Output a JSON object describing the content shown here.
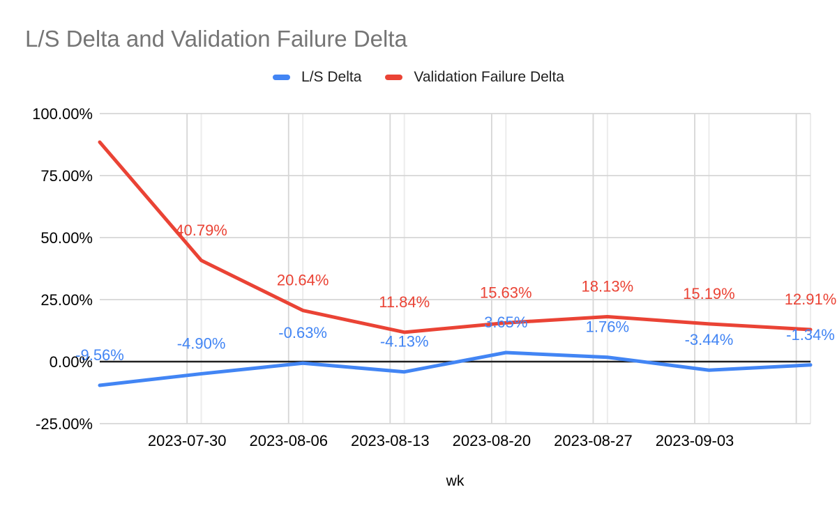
{
  "title": "L/S Delta and Validation Failure Delta",
  "legend": [
    {
      "label": "L/S Delta",
      "color": "#4285f4"
    },
    {
      "label": "Validation Failure Delta",
      "color": "#ea4335"
    }
  ],
  "chart_data": {
    "type": "line",
    "title": "L/S Delta and Validation Failure Delta",
    "xlabel": "wk",
    "ylabel": "",
    "legend_position": "top",
    "grid": true,
    "ylim": [
      -25,
      100
    ],
    "y_ticks_values": [
      100,
      75,
      50,
      25,
      0,
      -25
    ],
    "y_tick_labels": [
      "100.00%",
      "75.00%",
      "50.00%",
      "25.00%",
      "0.00%",
      "-25.00%"
    ],
    "x_tick_labels": [
      "2023-07-30",
      "2023-08-06",
      "2023-08-13",
      "2023-08-20",
      "2023-08-27",
      "2023-09-03"
    ],
    "n_points": 8,
    "series": [
      {
        "name": "L/S Delta",
        "color": "#4285f4",
        "values": [
          -9.56,
          -4.9,
          -0.63,
          -4.13,
          3.65,
          1.76,
          -3.44,
          -1.34
        ],
        "point_labels": [
          "-9.56%",
          "-4.90%",
          "-0.63%",
          "-4.13%",
          "3.65%",
          "1.76%",
          "-3.44%",
          "-1.34%"
        ]
      },
      {
        "name": "Validation Failure Delta",
        "color": "#ea4335",
        "values": [
          88.5,
          40.79,
          20.64,
          11.84,
          15.63,
          18.13,
          15.19,
          12.91
        ],
        "point_labels": [
          null,
          "40.79%",
          "20.64%",
          "11.84%",
          "15.63%",
          "18.13%",
          "15.19%",
          "12.91%"
        ],
        "first_value_estimated": true
      }
    ]
  }
}
